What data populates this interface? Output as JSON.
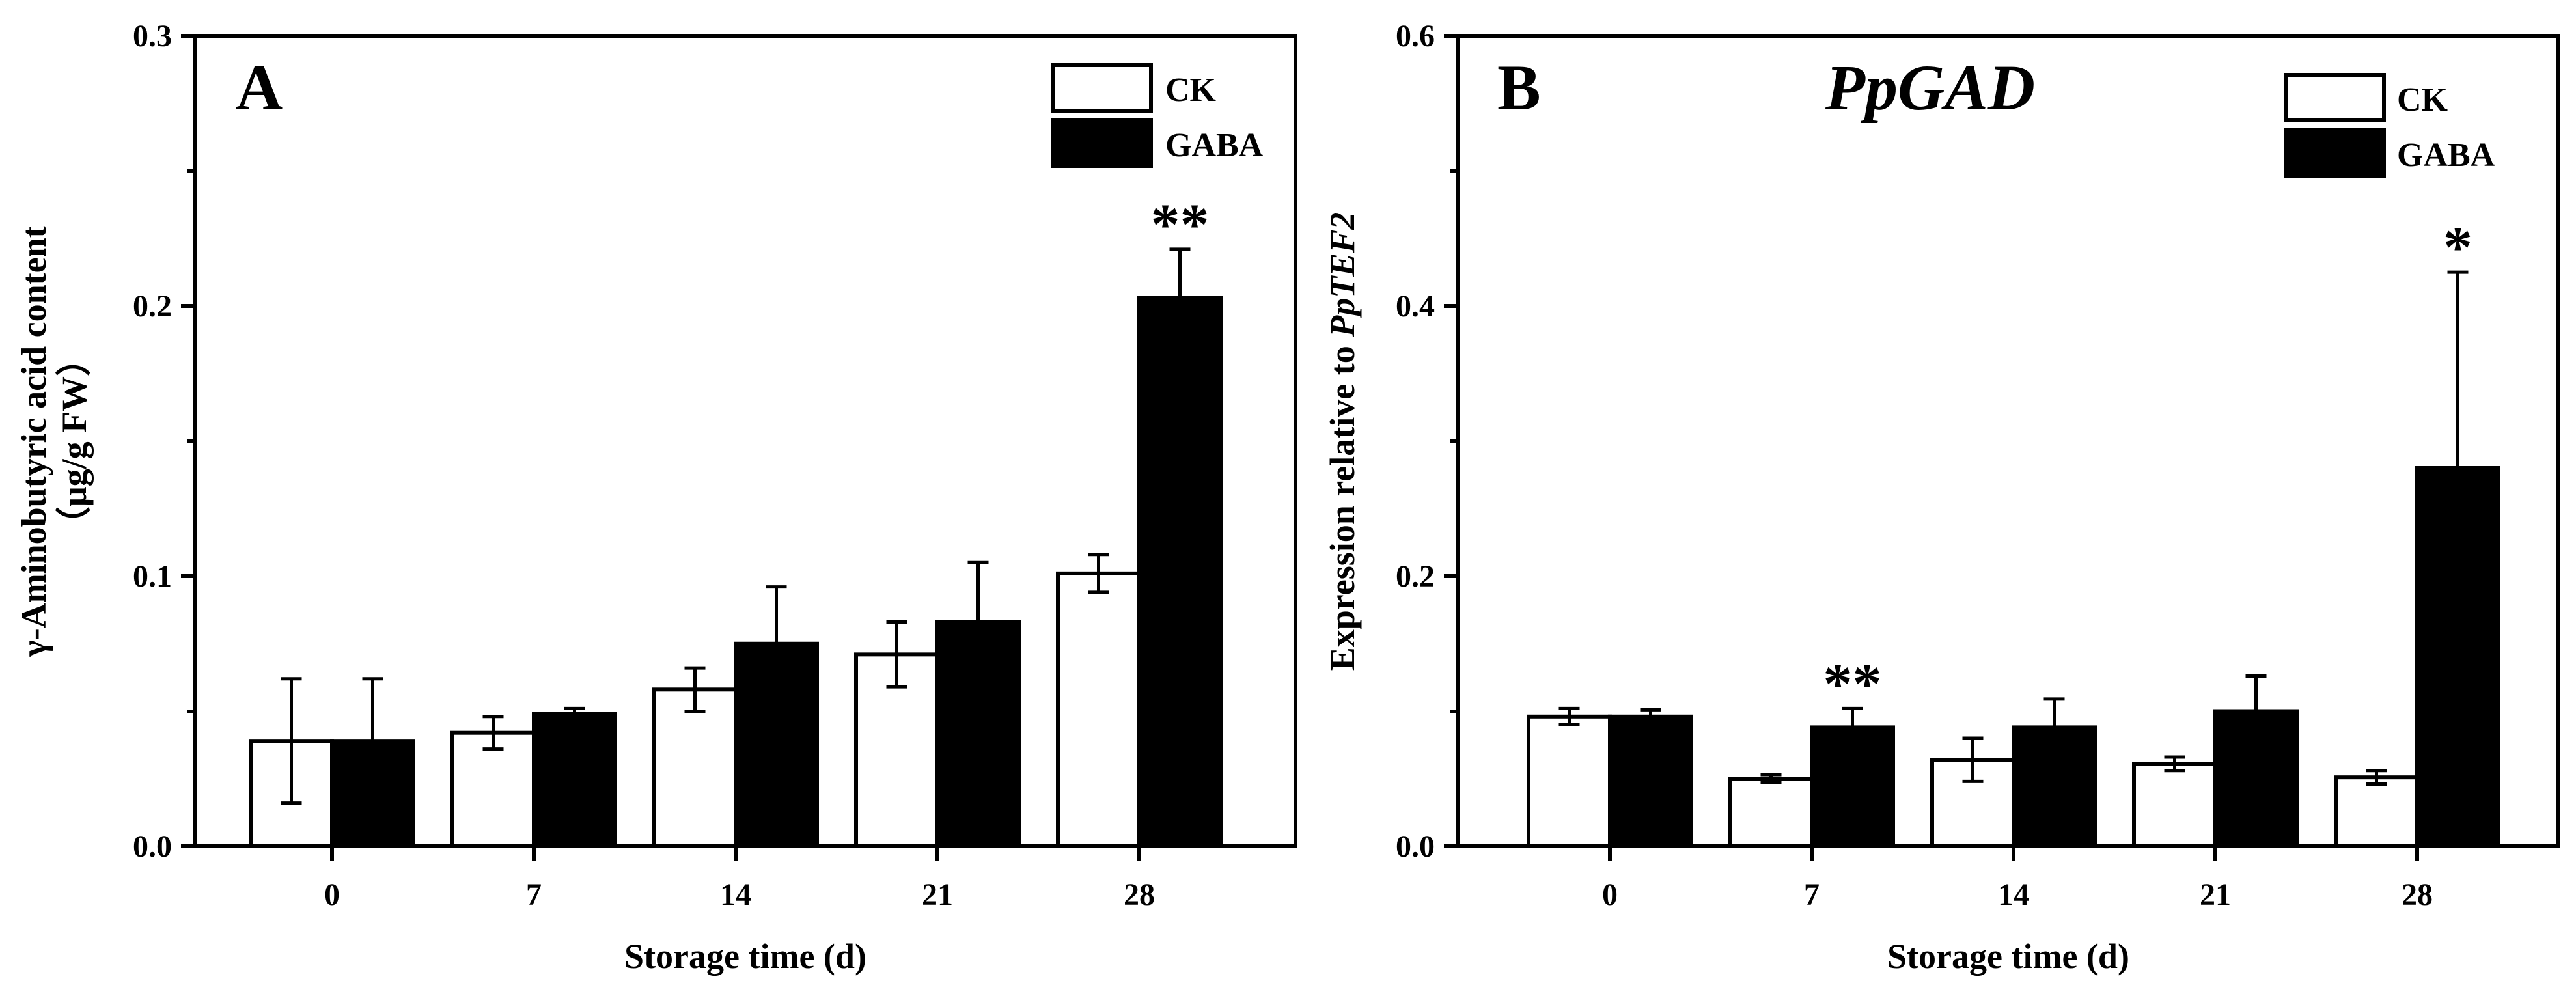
{
  "colors": {
    "CK": "#ffffff",
    "GABA": "#000000",
    "stroke": "#000000"
  },
  "chart_data": [
    {
      "type": "bar",
      "panel_label": "A",
      "title": "",
      "categories": [
        "0",
        "7",
        "14",
        "21",
        "28"
      ],
      "xlabel": "Storage time (d)",
      "ylabel_line1": "γ-Aminobutyric acid content",
      "ylabel_line2": "（μg/g FW）",
      "ylim": [
        0,
        0.3
      ],
      "yticks": [
        "0.0",
        "0.1",
        "0.2",
        "0.3"
      ],
      "legend": [
        "CK",
        "GABA"
      ],
      "legend_position": "top-right",
      "series": [
        {
          "name": "CK",
          "values": [
            0.039,
            0.042,
            0.058,
            0.071,
            0.101
          ],
          "errors": [
            0.023,
            0.006,
            0.008,
            0.012,
            0.007
          ]
        },
        {
          "name": "GABA",
          "values": [
            0.039,
            0.049,
            0.075,
            0.083,
            0.203
          ],
          "errors": [
            0.023,
            0.002,
            0.021,
            0.022,
            0.018
          ]
        }
      ],
      "significance": [
        "",
        "",
        "",
        "",
        "**"
      ]
    },
    {
      "type": "bar",
      "panel_label": "B",
      "title": "PpGAD",
      "categories": [
        "0",
        "7",
        "14",
        "21",
        "28"
      ],
      "xlabel": "Storage time (d)",
      "ylabel_prefix": "Expression relative to ",
      "ylabel_gene": "PpTEF2",
      "ylim": [
        0,
        0.6
      ],
      "yticks": [
        "0.0",
        "0.2",
        "0.4",
        "0.6"
      ],
      "legend": [
        "CK",
        "GABA"
      ],
      "legend_position": "top-right",
      "series": [
        {
          "name": "CK",
          "values": [
            0.096,
            0.05,
            0.064,
            0.061,
            0.051
          ],
          "errors": [
            0.006,
            0.003,
            0.016,
            0.005,
            0.005
          ]
        },
        {
          "name": "GABA",
          "values": [
            0.096,
            0.088,
            0.088,
            0.1,
            0.28
          ],
          "errors": [
            0.005,
            0.014,
            0.021,
            0.026,
            0.145
          ]
        }
      ],
      "significance": [
        "",
        "**",
        "",
        "",
        "*"
      ]
    }
  ]
}
